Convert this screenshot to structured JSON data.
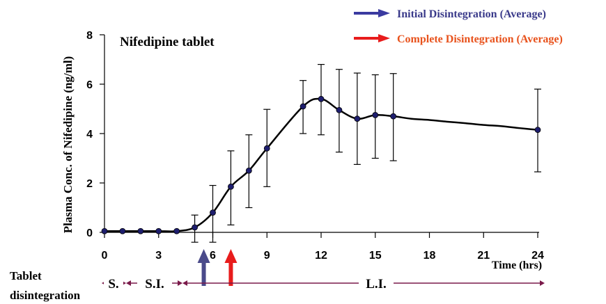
{
  "chart_data": {
    "type": "line",
    "title": "Nifedipine  tablet",
    "ylabel": "Plasma Conc. of Nifedipine (ng/ml)",
    "xlabel": "Time (hrs)",
    "xlim": [
      0,
      24
    ],
    "ylim": [
      0,
      8
    ],
    "x_ticks": [
      0,
      3,
      6,
      9,
      12,
      15,
      18,
      21,
      24
    ],
    "y_ticks": [
      0,
      2,
      4,
      6,
      8
    ],
    "grid": false,
    "series": [
      {
        "x": [
          0,
          1,
          2,
          3,
          4,
          5,
          6,
          7,
          8,
          9,
          11,
          12,
          13,
          14,
          15,
          16,
          24
        ],
        "y": [
          0.05,
          0.05,
          0.05,
          0.05,
          0.05,
          0.2,
          0.8,
          1.85,
          2.5,
          3.4,
          5.1,
          5.4,
          4.95,
          4.6,
          4.75,
          4.7,
          4.15
        ],
        "err_low": [
          null,
          null,
          null,
          null,
          null,
          -0.4,
          -0.4,
          0.3,
          1.0,
          1.85,
          4.0,
          3.95,
          3.25,
          2.75,
          3.0,
          2.9,
          2.45
        ],
        "err_high": [
          null,
          null,
          null,
          null,
          null,
          0.7,
          1.9,
          3.3,
          3.95,
          4.98,
          6.15,
          6.8,
          6.6,
          6.45,
          6.38,
          6.43,
          5.8
        ]
      }
    ],
    "smooth_curve_tail": {
      "x": [
        16,
        17,
        18,
        19,
        20,
        21,
        22,
        23,
        24
      ],
      "y": [
        4.7,
        4.6,
        4.55,
        4.48,
        4.42,
        4.35,
        4.3,
        4.22,
        4.15
      ]
    },
    "legend": [
      {
        "label": "Initial Disintegration (Average)",
        "arrow_color": "#3a3aa0",
        "text_color": "#3a3a8a"
      },
      {
        "label": "Complete Disintegration (Average)",
        "arrow_color": "#e81c1c",
        "text_color": "#e8521c"
      }
    ],
    "legend_position": "top-right",
    "disintegration_arrows": [
      {
        "x": 5.5,
        "color": "#4a4a8a"
      },
      {
        "x": 7.0,
        "color": "#e81c1c"
      }
    ],
    "tablet_disintegration": {
      "label": "Tablet disintegration",
      "label_line1": "Tablet",
      "label_line2": "disintegration",
      "segments": [
        "S.",
        "S.I.",
        "L.I."
      ],
      "color": "#7a1a4a"
    }
  }
}
